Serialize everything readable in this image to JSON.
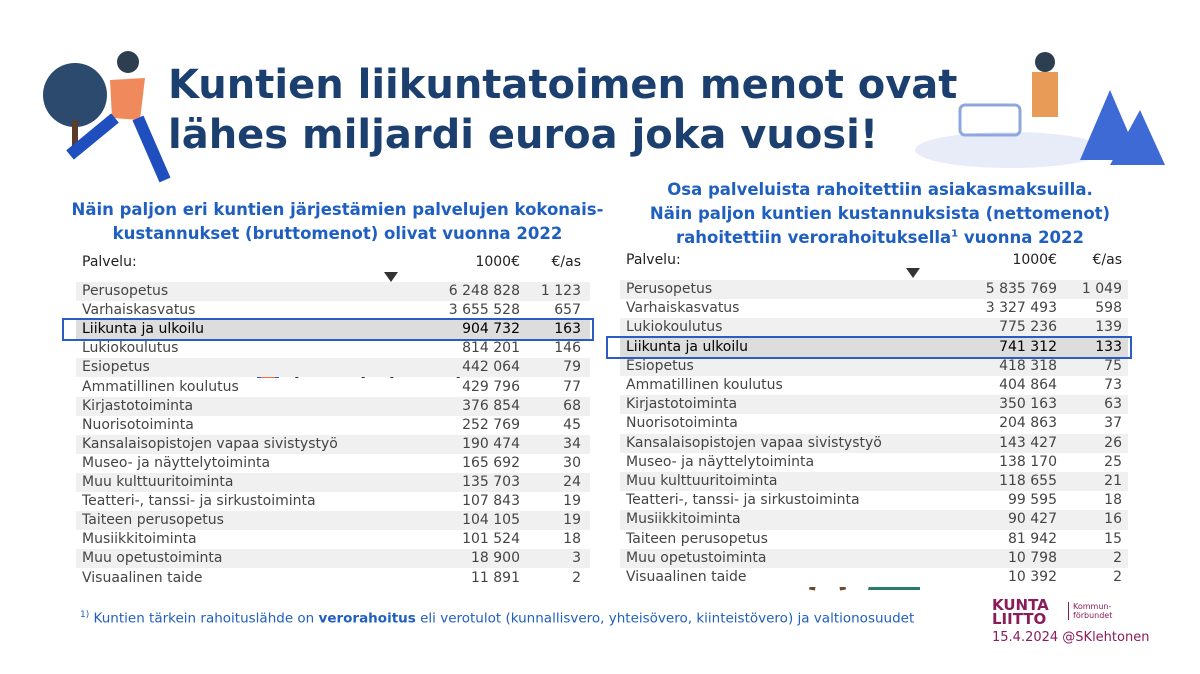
{
  "header": {
    "title_lines": [
      "Kuntien liikuntatoimen menot ovat",
      "lähes miljardi euroa joka vuosi!"
    ]
  },
  "left": {
    "subtitle_lines": [
      "Näin paljon eri kuntien järjestämien palvelujen kokonais-",
      "kustannukset (bruttomenot) olivat vuonna 2022"
    ],
    "columns": [
      "Palvelu:",
      "1000€",
      "€/as"
    ],
    "rows": [
      [
        "Perusopetus",
        "6 248 828",
        "1 123"
      ],
      [
        "Varhaiskasvatus",
        "3 655 528",
        "657"
      ],
      [
        "Liikunta ja ulkoilu",
        "904 732",
        "163"
      ],
      [
        "Lukiokoulutus",
        "814 201",
        "146"
      ],
      [
        "Esiopetus",
        "442 064",
        "79"
      ],
      [
        "Ammatillinen koulutus",
        "429 796",
        "77"
      ],
      [
        "Kirjastotoiminta",
        "376 854",
        "68"
      ],
      [
        "Nuorisotoiminta",
        "252 769",
        "45"
      ],
      [
        "Kansalaisopistojen vapaa sivistystyö",
        "190 474",
        "34"
      ],
      [
        "Museo- ja näyttelytoiminta",
        "165 692",
        "30"
      ],
      [
        "Muu kulttuuritoiminta",
        "135 703",
        "24"
      ],
      [
        "Teatteri-, tanssi- ja sirkustoiminta",
        "107 843",
        "19"
      ],
      [
        "Taiteen perusopetus",
        "104 105",
        "19"
      ],
      [
        "Musiikkitoiminta",
        "101 524",
        "18"
      ],
      [
        "Muu opetustoiminta",
        "18 900",
        "3"
      ],
      [
        "Visuaalinen taide",
        "11 891",
        "2"
      ]
    ]
  },
  "right": {
    "subtitle_lines": [
      "Osa palveluista rahoitettiin asiakasmaksuilla.",
      "Näin paljon kuntien kustannuksista (nettomenot)"
    ],
    "subtitle_last": {
      "before": "rahoitettiin verorahoituksella",
      "sup": "1",
      "after": " vuonna 2022"
    },
    "columns": [
      "Palvelu:",
      "1000€",
      "€/as"
    ],
    "rows": [
      [
        "Perusopetus",
        "5 835 769",
        "1 049"
      ],
      [
        "Varhaiskasvatus",
        "3 327 493",
        "598"
      ],
      [
        "Lukiokoulutus",
        "775 236",
        "139"
      ],
      [
        "Liikunta ja ulkoilu",
        "741 312",
        "133"
      ],
      [
        "Esiopetus",
        "418 318",
        "75"
      ],
      [
        "Ammatillinen koulutus",
        "404 864",
        "73"
      ],
      [
        "Kirjastotoiminta",
        "350 163",
        "63"
      ],
      [
        "Nuorisotoiminta",
        "204 863",
        "37"
      ],
      [
        "Kansalaisopistojen vapaa sivistystyö",
        "143 427",
        "26"
      ],
      [
        "Museo- ja näyttelytoiminta",
        "138 170",
        "25"
      ],
      [
        "Muu kulttuuritoiminta",
        "118 655",
        "21"
      ],
      [
        "Teatteri-, tanssi- ja sirkustoiminta",
        "99 595",
        "18"
      ],
      [
        "Musiikkitoiminta",
        "90 427",
        "16"
      ],
      [
        "Taiteen perusopetus",
        "81 942",
        "15"
      ],
      [
        "Muu opetustoiminta",
        "10 798",
        "2"
      ],
      [
        "Visuaalinen taide",
        "10 392",
        "2"
      ]
    ]
  },
  "footnote": {
    "marker": "1)",
    "before": "Kuntien tärkein rahoituslähde on ",
    "bold": "verorahoitus",
    "after": " eli verotulot (kunnallisvero, yhteisövero, kiinteistövero) ja valtionosuudet"
  },
  "logo": {
    "name_lines": [
      "KUNTA",
      "LIITTO"
    ],
    "sub": "Kommun-förbundet"
  },
  "credit": "15.4.2024 @SKlehtonen"
}
